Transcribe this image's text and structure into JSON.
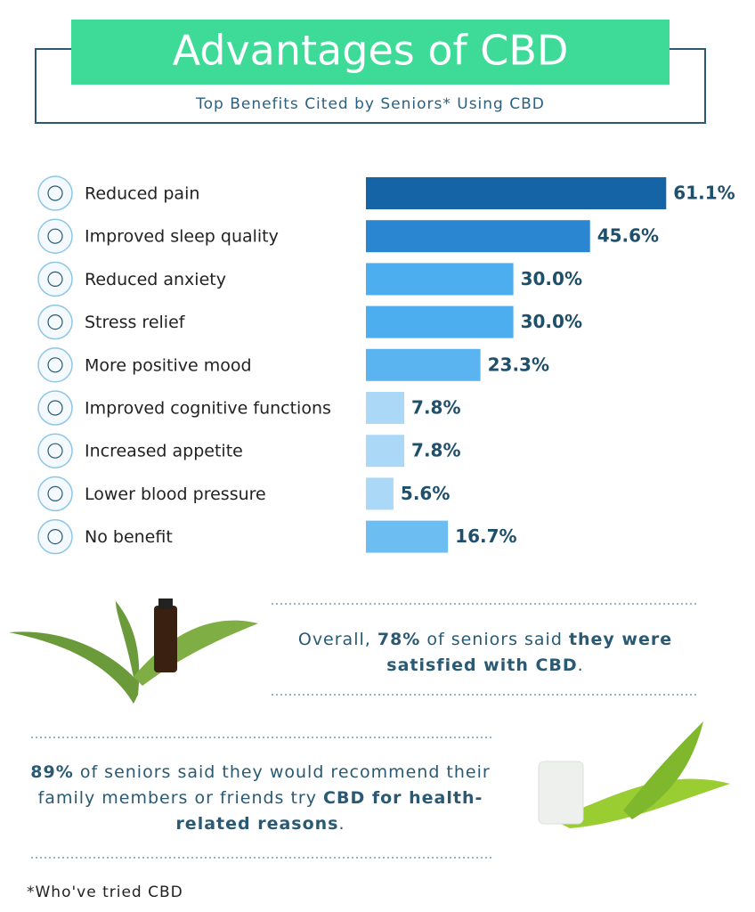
{
  "header": {
    "title": "Advantages of CBD",
    "subtitle": "Top Benefits Cited by Seniors* Using CBD"
  },
  "chart_data": {
    "type": "bar",
    "orientation": "horizontal",
    "categories": [
      "Reduced pain",
      "Improved sleep quality",
      "Reduced anxiety",
      "Stress relief",
      "More positive mood",
      "Improved cognitive functions",
      "Increased appetite",
      "Lower blood pressure",
      "No benefit"
    ],
    "values": [
      61.1,
      45.6,
      30.0,
      30.0,
      23.3,
      7.8,
      7.8,
      5.6,
      16.7
    ],
    "value_labels": [
      "61.1%",
      "45.6%",
      "30.0%",
      "30.0%",
      "23.3%",
      "7.8%",
      "7.8%",
      "5.6%",
      "16.7%"
    ],
    "colors": [
      "#1464a6",
      "#2b86d1",
      "#4cadef",
      "#4cadef",
      "#5ab4f0",
      "#acd8f8",
      "#acd8f8",
      "#acd8f8",
      "#6cbdf2"
    ]
  },
  "notes": [
    {
      "parts": [
        "Overall, ",
        "78%",
        " of seniors said ",
        "they were satisfied with CBD",
        "."
      ]
    },
    {
      "parts": [
        "89%",
        " of seniors said they would recommend their family members or friends try ",
        "CBD for health-related reasons",
        "."
      ]
    }
  ],
  "footnote": "*Who've tried CBD"
}
